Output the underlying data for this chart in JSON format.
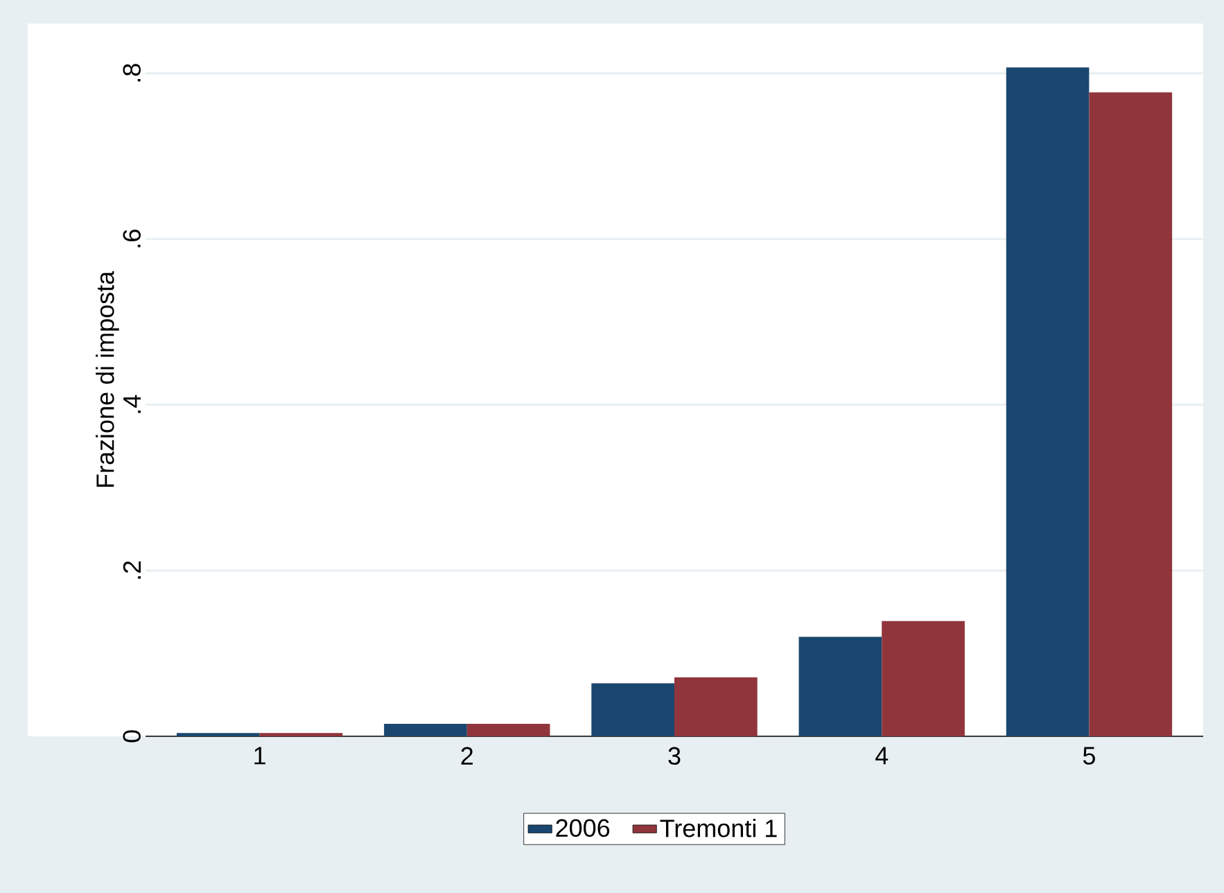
{
  "chart_data": {
    "type": "bar",
    "ylabel": "Frazione di imposta",
    "categories": [
      "1",
      "2",
      "3",
      "4",
      "5"
    ],
    "series": [
      {
        "name": "2006",
        "color": "#1a476f",
        "values": [
          0.004,
          0.015,
          0.064,
          0.12,
          0.807
        ]
      },
      {
        "name": "Tremonti 1",
        "color": "#90353b",
        "values": [
          0.004,
          0.015,
          0.071,
          0.139,
          0.777
        ]
      }
    ],
    "ylim": [
      0,
      0.86
    ],
    "yticks": [
      0,
      {
        "value": 0.2,
        "label": ".2"
      },
      {
        "value": 0.4,
        "label": ".4"
      },
      {
        "value": 0.6,
        "label": ".6"
      },
      {
        "value": 0.8,
        "label": ".8"
      }
    ],
    "grid": "y",
    "legend": "bottom"
  }
}
